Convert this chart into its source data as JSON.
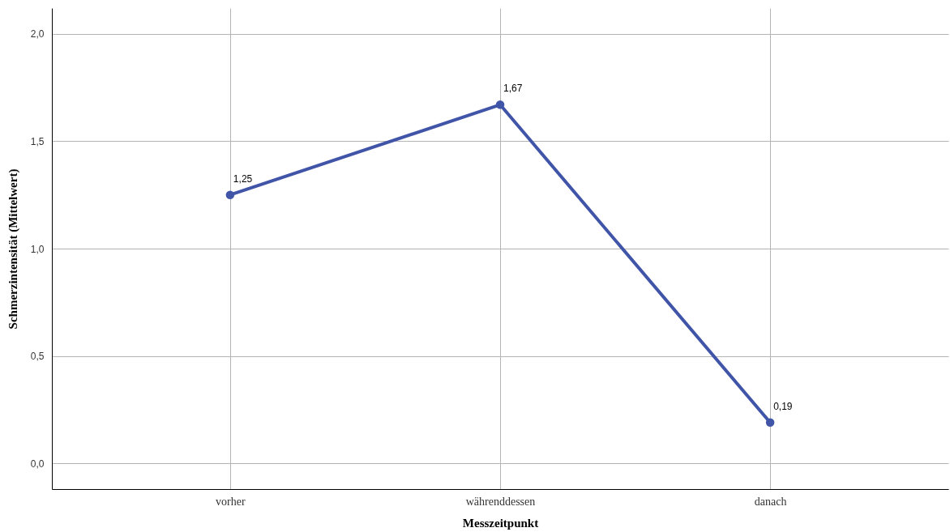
{
  "chart_data": {
    "type": "line",
    "xlabel": "Messzeitpunkt",
    "ylabel": "Schmerzintensität (Mittelwert)",
    "categories": [
      "vorher",
      "währenddessen",
      "danach"
    ],
    "series": [
      {
        "color": "#4055a8",
        "values": [
          1.25,
          1.67,
          0.19
        ],
        "value_labels": [
          "1,25",
          "1,67",
          "0,19"
        ]
      }
    ],
    "ylim": [
      -0.12,
      2.12
    ],
    "yticks": [
      {
        "value": 0,
        "label": "0,0"
      },
      {
        "value": 0.5,
        "label": "0,5"
      },
      {
        "value": 1,
        "label": "1,0"
      },
      {
        "value": 1.5,
        "label": "1,5"
      },
      {
        "value": 2,
        "label": "2,0"
      }
    ],
    "grid": true,
    "marker": "circle",
    "line_style": "solid"
  }
}
